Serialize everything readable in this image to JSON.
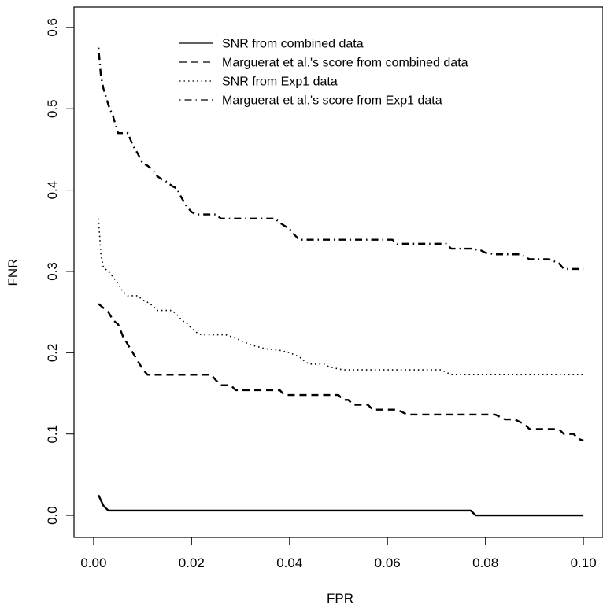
{
  "chart_data": {
    "type": "line",
    "title": "",
    "xlabel": "FPR",
    "ylabel": "FNR",
    "xlim": [
      -0.004,
      0.104
    ],
    "ylim": [
      -0.027,
      0.625
    ],
    "xticks": [
      0.0,
      0.02,
      0.04,
      0.06,
      0.08,
      0.1
    ],
    "xtick_labels": [
      "0.00",
      "0.02",
      "0.04",
      "0.06",
      "0.08",
      "0.10"
    ],
    "yticks": [
      0.0,
      0.1,
      0.2,
      0.3,
      0.4,
      0.5,
      0.6
    ],
    "ytick_labels": [
      "0.0",
      "0.1",
      "0.2",
      "0.3",
      "0.4",
      "0.5",
      "0.6"
    ],
    "grid": false,
    "legend_position": "top-center",
    "series": [
      {
        "name": "SNR from combined data",
        "line_style": "solid",
        "color": "#000000",
        "x": [
          0.001,
          0.002,
          0.003,
          0.077,
          0.078,
          0.1
        ],
        "y": [
          0.025,
          0.012,
          0.006,
          0.006,
          0.0,
          0.0
        ]
      },
      {
        "name": "Marguerat et al.'s score from combined data",
        "line_style": "dashed",
        "color": "#000000",
        "x": [
          0.001,
          0.003,
          0.005,
          0.007,
          0.009,
          0.011,
          0.024,
          0.026,
          0.029,
          0.039,
          0.051,
          0.053,
          0.057,
          0.062,
          0.064,
          0.08,
          0.084,
          0.088,
          0.09,
          0.096,
          0.099,
          0.1
        ],
        "y": [
          0.26,
          0.25,
          0.235,
          0.21,
          0.19,
          0.173,
          0.173,
          0.16,
          0.154,
          0.148,
          0.142,
          0.136,
          0.13,
          0.13,
          0.124,
          0.124,
          0.118,
          0.112,
          0.106,
          0.1,
          0.094,
          0.092
        ],
        "points": [
          [
            0.001,
            0.26
          ],
          [
            0.002,
            0.255
          ],
          [
            0.003,
            0.25
          ],
          [
            0.004,
            0.24
          ],
          [
            0.005,
            0.235
          ],
          [
            0.006,
            0.22
          ],
          [
            0.007,
            0.21
          ],
          [
            0.008,
            0.2
          ],
          [
            0.009,
            0.19
          ],
          [
            0.01,
            0.18
          ],
          [
            0.011,
            0.173
          ],
          [
            0.024,
            0.173
          ],
          [
            0.025,
            0.166
          ],
          [
            0.026,
            0.16
          ],
          [
            0.028,
            0.16
          ],
          [
            0.029,
            0.154
          ],
          [
            0.038,
            0.154
          ],
          [
            0.039,
            0.148
          ],
          [
            0.048,
            0.148
          ],
          [
            0.05,
            0.148
          ],
          [
            0.051,
            0.142
          ],
          [
            0.052,
            0.142
          ],
          [
            0.053,
            0.136
          ],
          [
            0.056,
            0.136
          ],
          [
            0.057,
            0.13
          ],
          [
            0.062,
            0.13
          ],
          [
            0.064,
            0.124
          ],
          [
            0.08,
            0.124
          ],
          [
            0.082,
            0.124
          ],
          [
            0.084,
            0.118
          ],
          [
            0.086,
            0.118
          ],
          [
            0.088,
            0.112
          ],
          [
            0.089,
            0.106
          ],
          [
            0.091,
            0.106
          ],
          [
            0.095,
            0.106
          ],
          [
            0.096,
            0.1
          ],
          [
            0.098,
            0.1
          ],
          [
            0.099,
            0.094
          ],
          [
            0.1,
            0.092
          ]
        ]
      },
      {
        "name": "SNR from Exp1 data",
        "line_style": "dotted",
        "color": "#000000",
        "points": [
          [
            0.001,
            0.365
          ],
          [
            0.0015,
            0.32
          ],
          [
            0.002,
            0.305
          ],
          [
            0.003,
            0.3
          ],
          [
            0.004,
            0.293
          ],
          [
            0.005,
            0.285
          ],
          [
            0.006,
            0.275
          ],
          [
            0.007,
            0.27
          ],
          [
            0.009,
            0.27
          ],
          [
            0.01,
            0.265
          ],
          [
            0.011,
            0.262
          ],
          [
            0.012,
            0.258
          ],
          [
            0.013,
            0.252
          ],
          [
            0.016,
            0.252
          ],
          [
            0.017,
            0.247
          ],
          [
            0.018,
            0.24
          ],
          [
            0.019,
            0.236
          ],
          [
            0.02,
            0.23
          ],
          [
            0.021,
            0.225
          ],
          [
            0.022,
            0.222
          ],
          [
            0.027,
            0.222
          ],
          [
            0.028,
            0.22
          ],
          [
            0.029,
            0.218
          ],
          [
            0.03,
            0.215
          ],
          [
            0.032,
            0.21
          ],
          [
            0.035,
            0.205
          ],
          [
            0.038,
            0.203
          ],
          [
            0.04,
            0.2
          ],
          [
            0.042,
            0.195
          ],
          [
            0.043,
            0.19
          ],
          [
            0.044,
            0.186
          ],
          [
            0.047,
            0.186
          ],
          [
            0.048,
            0.183
          ],
          [
            0.05,
            0.18
          ],
          [
            0.051,
            0.179
          ],
          [
            0.071,
            0.179
          ],
          [
            0.072,
            0.176
          ],
          [
            0.073,
            0.173
          ],
          [
            0.1,
            0.173
          ]
        ]
      },
      {
        "name": "Marguerat et al.'s score from Exp1 data",
        "line_style": "dotdash",
        "color": "#000000",
        "points": [
          [
            0.001,
            0.575
          ],
          [
            0.0015,
            0.54
          ],
          [
            0.002,
            0.525
          ],
          [
            0.003,
            0.505
          ],
          [
            0.004,
            0.49
          ],
          [
            0.005,
            0.47
          ],
          [
            0.007,
            0.47
          ],
          [
            0.008,
            0.455
          ],
          [
            0.009,
            0.445
          ],
          [
            0.01,
            0.433
          ],
          [
            0.011,
            0.43
          ],
          [
            0.012,
            0.425
          ],
          [
            0.013,
            0.417
          ],
          [
            0.014,
            0.413
          ],
          [
            0.015,
            0.41
          ],
          [
            0.016,
            0.405
          ],
          [
            0.017,
            0.402
          ],
          [
            0.018,
            0.39
          ],
          [
            0.019,
            0.38
          ],
          [
            0.02,
            0.373
          ],
          [
            0.021,
            0.37
          ],
          [
            0.025,
            0.37
          ],
          [
            0.026,
            0.365
          ],
          [
            0.037,
            0.365
          ],
          [
            0.038,
            0.36
          ],
          [
            0.039,
            0.356
          ],
          [
            0.04,
            0.352
          ],
          [
            0.041,
            0.345
          ],
          [
            0.042,
            0.339
          ],
          [
            0.061,
            0.339
          ],
          [
            0.062,
            0.334
          ],
          [
            0.07,
            0.334
          ],
          [
            0.072,
            0.334
          ],
          [
            0.073,
            0.328
          ],
          [
            0.077,
            0.328
          ],
          [
            0.079,
            0.326
          ],
          [
            0.08,
            0.323
          ],
          [
            0.082,
            0.321
          ],
          [
            0.087,
            0.321
          ],
          [
            0.089,
            0.315
          ],
          [
            0.093,
            0.315
          ],
          [
            0.095,
            0.31
          ],
          [
            0.096,
            0.303
          ],
          [
            0.1,
            0.303
          ]
        ]
      }
    ]
  }
}
